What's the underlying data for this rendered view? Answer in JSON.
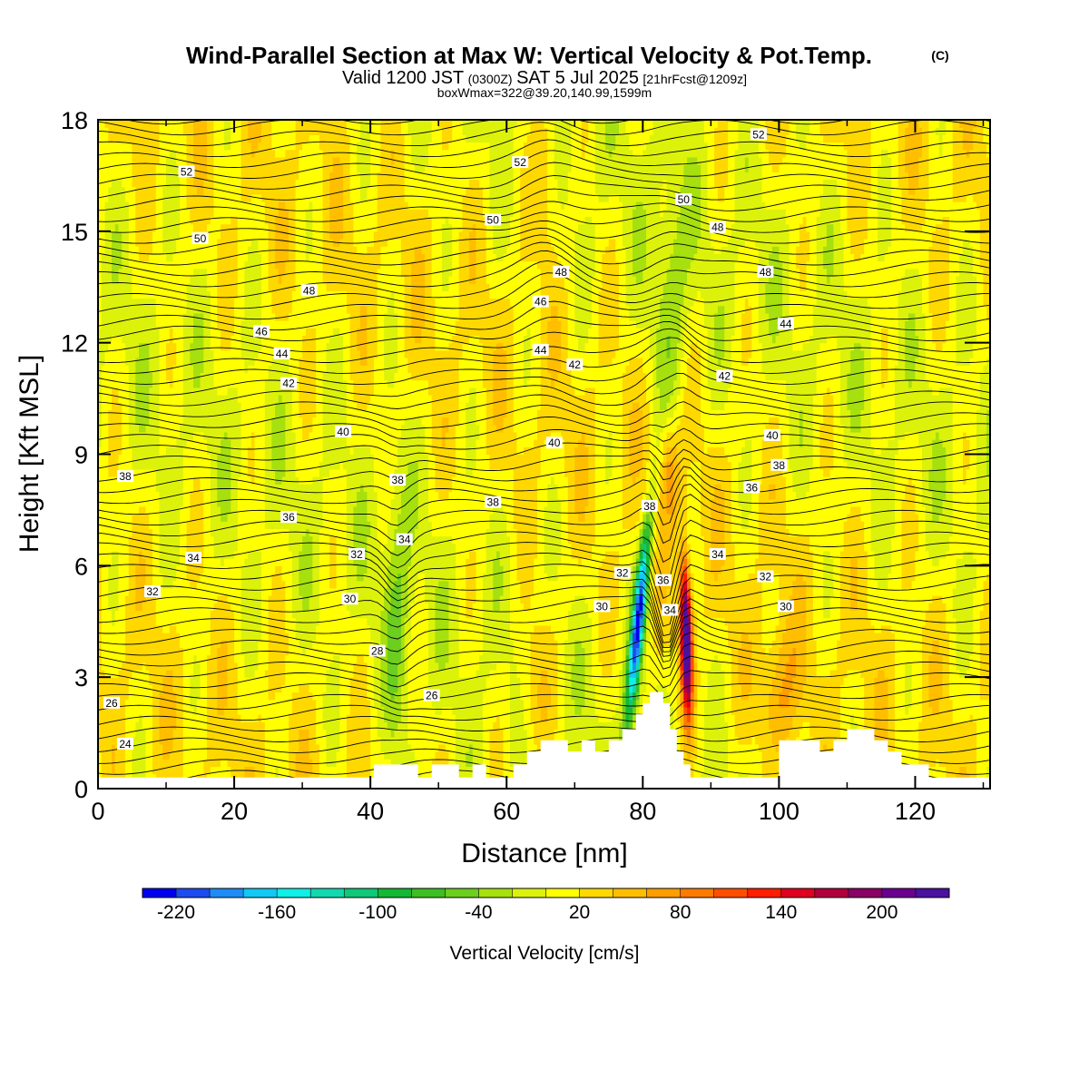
{
  "title_line1": "Wind-Parallel Section at Max W: Vertical Velocity & Pot.Temp.",
  "title_mark": "(C)",
  "title_line2_a": "Valid 1200 JST",
  "title_line2_b": "(0300Z)",
  "title_line2_c": "SAT 5 Jul 2025",
  "title_line2_d": "[21hrFcst@1209z]",
  "title_line3": "boxWmax=322@39.20,140.99,1599m",
  "chart_data": {
    "type": "heatmap",
    "xlabel": "Distance [nm]",
    "ylabel": "Height [Kft MSL]",
    "xlim": [
      0,
      131
    ],
    "ylim": [
      0,
      18
    ],
    "x_ticks": [
      0,
      20,
      40,
      60,
      80,
      100,
      120
    ],
    "y_ticks": [
      0,
      3,
      6,
      9,
      12,
      15,
      18
    ],
    "colorbar": {
      "title": "Vertical Velocity [cm/s]",
      "levels": [
        -240,
        -220,
        -200,
        -180,
        -160,
        -140,
        -120,
        -100,
        -80,
        -60,
        -40,
        -20,
        0,
        20,
        40,
        60,
        80,
        100,
        120,
        140,
        160,
        180,
        200,
        220,
        240
      ],
      "tick_labels": [
        -220,
        -160,
        -100,
        -40,
        20,
        80,
        140,
        200
      ],
      "colors": [
        "#0000ee",
        "#1c4cf0",
        "#1f8cf6",
        "#12c8f4",
        "#0ff0e6",
        "#12d8b0",
        "#0fc878",
        "#14b834",
        "#3cbf22",
        "#6cce1e",
        "#a6e00e",
        "#dcf20a",
        "#ffff00",
        "#ffd800",
        "#ffbe00",
        "#ff9e00",
        "#ff7a00",
        "#ff4e00",
        "#ff1e00",
        "#e00020",
        "#b0003c",
        "#8a0064",
        "#6a0090",
        "#4a10a0"
      ]
    },
    "terrain_profile": {
      "x": [
        0,
        40,
        40.5,
        46,
        47,
        49,
        51,
        53,
        55,
        57,
        59,
        61,
        63,
        65,
        67,
        69,
        71,
        73,
        75,
        77,
        79,
        80,
        81,
        82,
        83,
        84,
        85,
        86,
        87,
        88,
        90,
        92,
        94,
        96,
        98,
        100,
        102,
        104,
        106,
        108,
        110,
        112,
        114,
        116,
        118,
        120,
        122,
        124,
        131
      ],
      "height_kft": [
        0.3,
        0.3,
        0.65,
        0.65,
        0.3,
        0.65,
        0.65,
        0.3,
        0.65,
        0.3,
        0.3,
        0.65,
        1.0,
        1.3,
        1.3,
        1.0,
        1.3,
        1.0,
        1.3,
        1.6,
        2.0,
        2.3,
        2.6,
        2.6,
        2.3,
        1.6,
        1.0,
        0.65,
        0.3,
        0.3,
        0.3,
        0.3,
        0.3,
        0.3,
        0.3,
        1.3,
        1.3,
        1.3,
        1.0,
        1.3,
        1.6,
        1.6,
        1.3,
        1.0,
        0.65,
        0.65,
        0.3,
        0.3,
        0.3
      ]
    },
    "contour_labels": [
      {
        "text": "52",
        "x": 13,
        "y": 16.6
      },
      {
        "text": "52",
        "x": 62,
        "y": 16.85
      },
      {
        "text": "52",
        "x": 97,
        "y": 17.6
      },
      {
        "text": "50",
        "x": 15,
        "y": 14.8
      },
      {
        "text": "50",
        "x": 58,
        "y": 15.3
      },
      {
        "text": "50",
        "x": 86,
        "y": 15.85
      },
      {
        "text": "48",
        "x": 31,
        "y": 13.4
      },
      {
        "text": "48",
        "x": 68,
        "y": 13.9
      },
      {
        "text": "48",
        "x": 91,
        "y": 15.1
      },
      {
        "text": "48",
        "x": 98,
        "y": 13.9
      },
      {
        "text": "46",
        "x": 24,
        "y": 12.3
      },
      {
        "text": "46",
        "x": 65,
        "y": 13.1
      },
      {
        "text": "44",
        "x": 27,
        "y": 11.7
      },
      {
        "text": "44",
        "x": 65,
        "y": 11.8
      },
      {
        "text": "44",
        "x": 101,
        "y": 12.5
      },
      {
        "text": "42",
        "x": 28,
        "y": 10.9
      },
      {
        "text": "42",
        "x": 70,
        "y": 11.4
      },
      {
        "text": "42",
        "x": 92,
        "y": 11.1
      },
      {
        "text": "40",
        "x": 36,
        "y": 9.6
      },
      {
        "text": "40",
        "x": 67,
        "y": 9.3
      },
      {
        "text": "40",
        "x": 99,
        "y": 9.5
      },
      {
        "text": "38",
        "x": 4,
        "y": 8.4
      },
      {
        "text": "38",
        "x": 44,
        "y": 8.3
      },
      {
        "text": "38",
        "x": 58,
        "y": 7.7
      },
      {
        "text": "38",
        "x": 81,
        "y": 7.6
      },
      {
        "text": "38",
        "x": 100,
        "y": 8.7
      },
      {
        "text": "36",
        "x": 28,
        "y": 7.3
      },
      {
        "text": "36",
        "x": 83,
        "y": 5.6
      },
      {
        "text": "36",
        "x": 96,
        "y": 8.1
      },
      {
        "text": "34",
        "x": 14,
        "y": 6.2
      },
      {
        "text": "34",
        "x": 45,
        "y": 6.7
      },
      {
        "text": "34",
        "x": 84,
        "y": 4.8
      },
      {
        "text": "34",
        "x": 91,
        "y": 6.3
      },
      {
        "text": "32",
        "x": 8,
        "y": 5.3
      },
      {
        "text": "32",
        "x": 38,
        "y": 6.3
      },
      {
        "text": "32",
        "x": 77,
        "y": 5.8
      },
      {
        "text": "32",
        "x": 98,
        "y": 5.7
      },
      {
        "text": "30",
        "x": 37,
        "y": 5.1
      },
      {
        "text": "30",
        "x": 74,
        "y": 4.9
      },
      {
        "text": "30",
        "x": 101,
        "y": 4.9
      },
      {
        "text": "28",
        "x": 41,
        "y": 3.7
      },
      {
        "text": "26",
        "x": 2,
        "y": 2.3
      },
      {
        "text": "26",
        "x": 49,
        "y": 2.5
      },
      {
        "text": "24",
        "x": 4,
        "y": 1.2
      }
    ]
  }
}
